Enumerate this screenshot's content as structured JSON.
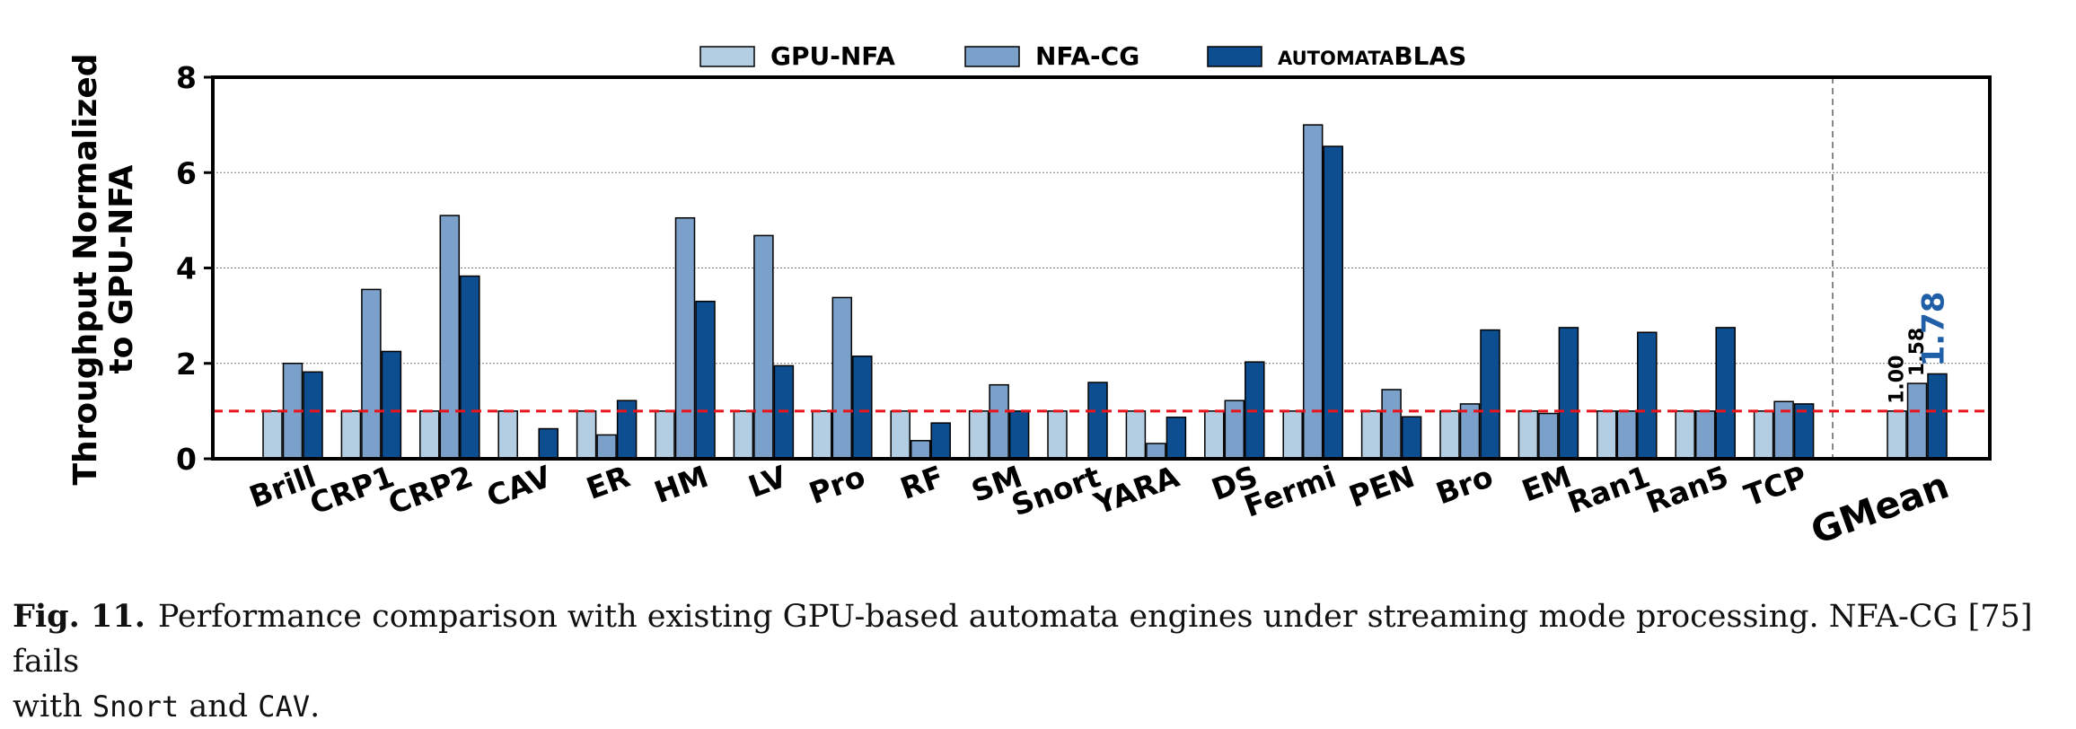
{
  "chart_data": {
    "type": "bar",
    "ylabel_lines": [
      "Throughput Normalized",
      "to GPU-NFA"
    ],
    "ylim": [
      0,
      8
    ],
    "yticks": [
      0,
      2,
      4,
      6,
      8
    ],
    "grid": true,
    "legend_position": "top",
    "reference_line": 1.0,
    "categories": [
      "Brill",
      "CRP1",
      "CRP2",
      "CAV",
      "ER",
      "HM",
      "LV",
      "Pro",
      "RF",
      "SM",
      "Snort",
      "YARA",
      "DS",
      "Fermi",
      "PEN",
      "Bro",
      "EM",
      "Ran1",
      "Ran5",
      "TCP",
      "GMean"
    ],
    "series": [
      {
        "name": "GPU-NFA",
        "color": "#b3cde3",
        "values": [
          1,
          1,
          1,
          1,
          1,
          1,
          1,
          1,
          1,
          1,
          1,
          1,
          1,
          1,
          1,
          1,
          1,
          1,
          1,
          1,
          1.0
        ]
      },
      {
        "name": "NFA-CG",
        "color": "#7ba0c9",
        "values": [
          2.0,
          3.55,
          5.1,
          null,
          0.5,
          5.05,
          4.68,
          3.38,
          0.38,
          1.55,
          null,
          0.32,
          1.22,
          7.0,
          1.45,
          1.15,
          0.95,
          1.0,
          1.0,
          1.2,
          1.58
        ]
      },
      {
        "name": "AUTOMATABLAS",
        "color": "#0d4e91",
        "values": [
          1.82,
          2.25,
          3.83,
          0.63,
          1.22,
          3.3,
          1.95,
          2.15,
          0.75,
          1.0,
          1.6,
          0.87,
          2.03,
          6.55,
          0.88,
          2.7,
          2.75,
          2.65,
          2.75,
          1.15,
          1.78
        ]
      }
    ],
    "annotations": [
      {
        "text": "1.00",
        "series": "GPU-NFA",
        "category": "GMean"
      },
      {
        "text": "1.58",
        "series": "NFA-CG",
        "category": "GMean"
      },
      {
        "text": "1.78",
        "series": "AUTOMATABLAS",
        "category": "GMean",
        "color": "#1f5fa8"
      }
    ]
  },
  "caption": {
    "label": "Fig. 11.",
    "text_1": "Performance comparison with existing GPU-based automata engines under streaming mode processing. NFA-CG [75] fails",
    "text_2": "with ",
    "code_1": "Snort",
    "text_3": " and ",
    "code_2": "CAV",
    "text_4": "."
  }
}
